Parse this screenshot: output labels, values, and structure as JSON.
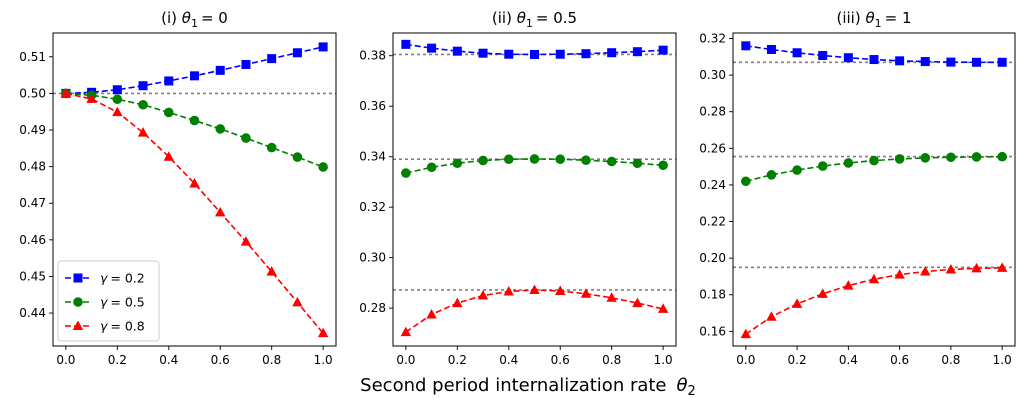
{
  "figure": {
    "xlabel": "Second period internalization rate",
    "xlabel_symbol": "θ",
    "xlabel_subscript": "2"
  },
  "chart_data": [
    {
      "type": "line",
      "title_prefix": "(i)",
      "title_symbol": "θ",
      "title_subscript": "1",
      "title_value": "= 0",
      "x": [
        0.0,
        0.1,
        0.2,
        0.3,
        0.4,
        0.5,
        0.6,
        0.7,
        0.8,
        0.9,
        1.0
      ],
      "xlim": [
        -0.05,
        1.05
      ],
      "ylim": [
        0.431,
        0.5165
      ],
      "xticks": [
        "0.0",
        "0.2",
        "0.4",
        "0.6",
        "0.8",
        "1.0"
      ],
      "yticks": [
        "0.44",
        "0.45",
        "0.46",
        "0.47",
        "0.48",
        "0.49",
        "0.50",
        "0.51"
      ],
      "reference_lines": [
        0.5
      ],
      "series": [
        {
          "name": "γ = 0.2",
          "symbol": "γ",
          "value_label": "= 0.2",
          "color": "#0000ff",
          "marker": "square",
          "values": [
            0.5,
            0.5003,
            0.501,
            0.5021,
            0.5034,
            0.5048,
            0.5063,
            0.5079,
            0.5095,
            0.5111,
            0.5127
          ]
        },
        {
          "name": "γ = 0.5",
          "symbol": "γ",
          "value_label": "= 0.5",
          "color": "#008000",
          "marker": "circle",
          "values": [
            0.5,
            0.4995,
            0.4984,
            0.4969,
            0.4948,
            0.4926,
            0.4903,
            0.4878,
            0.4852,
            0.4826,
            0.4799
          ]
        },
        {
          "name": "γ = 0.8",
          "symbol": "γ",
          "value_label": "= 0.8",
          "color": "#ff0000",
          "marker": "triangle",
          "values": [
            0.5,
            0.4985,
            0.4949,
            0.4893,
            0.4827,
            0.4754,
            0.4675,
            0.4595,
            0.4513,
            0.4429,
            0.4345
          ]
        }
      ],
      "legend": "lower-left"
    },
    {
      "type": "line",
      "title_prefix": "(ii)",
      "title_symbol": "θ",
      "title_subscript": "1",
      "title_value": "= 0.5",
      "x": [
        0.0,
        0.1,
        0.2,
        0.3,
        0.4,
        0.5,
        0.6,
        0.7,
        0.8,
        0.9,
        1.0
      ],
      "xlim": [
        -0.05,
        1.05
      ],
      "ylim": [
        0.265,
        0.389
      ],
      "xticks": [
        "0.0",
        "0.2",
        "0.4",
        "0.6",
        "0.8",
        "1.0"
      ],
      "yticks": [
        "0.28",
        "0.30",
        "0.32",
        "0.34",
        "0.36",
        "0.38"
      ],
      "reference_lines": [
        0.3805,
        0.339,
        0.2872
      ],
      "series": [
        {
          "name": "γ = 0.2",
          "color": "#0000ff",
          "marker": "square",
          "values": [
            0.3845,
            0.383,
            0.3818,
            0.381,
            0.3806,
            0.3805,
            0.3806,
            0.3808,
            0.3812,
            0.3816,
            0.3822
          ]
        },
        {
          "name": "γ = 0.5",
          "color": "#008000",
          "marker": "circle",
          "values": [
            0.3335,
            0.3358,
            0.3374,
            0.3385,
            0.339,
            0.3391,
            0.339,
            0.3386,
            0.3381,
            0.3374,
            0.3366
          ]
        },
        {
          "name": "γ = 0.8",
          "color": "#ff0000",
          "marker": "triangle",
          "values": [
            0.2705,
            0.2775,
            0.282,
            0.285,
            0.2866,
            0.2872,
            0.2868,
            0.2857,
            0.2841,
            0.282,
            0.2797
          ]
        }
      ]
    },
    {
      "type": "line",
      "title_prefix": "(iii)",
      "title_symbol": "θ",
      "title_subscript": "1",
      "title_value": "= 1",
      "x": [
        0.0,
        0.1,
        0.2,
        0.3,
        0.4,
        0.5,
        0.6,
        0.7,
        0.8,
        0.9,
        1.0
      ],
      "xlim": [
        -0.05,
        1.05
      ],
      "ylim": [
        0.152,
        0.323
      ],
      "xticks": [
        "0.0",
        "0.2",
        "0.4",
        "0.6",
        "0.8",
        "1.0"
      ],
      "yticks": [
        "0.16",
        "0.18",
        "0.20",
        "0.22",
        "0.24",
        "0.26",
        "0.28",
        "0.30",
        "0.32"
      ],
      "reference_lines": [
        0.307,
        0.2555,
        0.195
      ],
      "series": [
        {
          "name": "γ = 0.2",
          "color": "#0000ff",
          "marker": "square",
          "values": [
            0.316,
            0.314,
            0.3122,
            0.3107,
            0.3095,
            0.3085,
            0.3078,
            0.3074,
            0.3071,
            0.307,
            0.307
          ]
        },
        {
          "name": "γ = 0.5",
          "color": "#008000",
          "marker": "circle",
          "values": [
            0.242,
            0.2455,
            0.2481,
            0.2503,
            0.252,
            0.2533,
            0.2542,
            0.2548,
            0.2551,
            0.2553,
            0.2554
          ]
        },
        {
          "name": "γ = 0.8",
          "color": "#ff0000",
          "marker": "triangle",
          "values": [
            0.1585,
            0.168,
            0.175,
            0.1805,
            0.185,
            0.1885,
            0.191,
            0.1927,
            0.1938,
            0.1944,
            0.1947
          ]
        }
      ]
    }
  ]
}
